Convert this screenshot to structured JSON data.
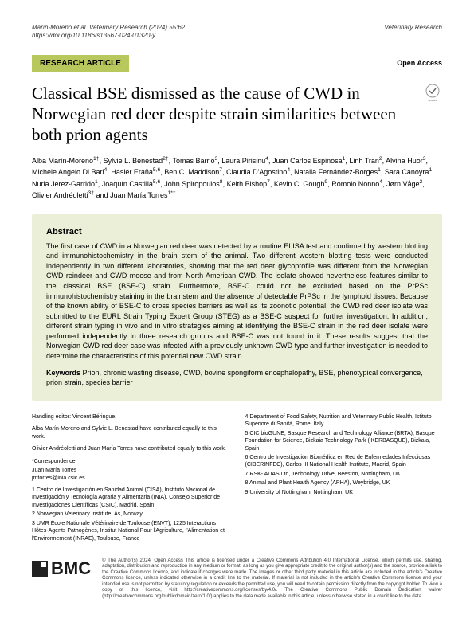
{
  "header": {
    "citation": "Marín-Moreno et al. Veterinary Research    (2024) 55:62",
    "doi": "https://doi.org/10.1186/s13567-024-01320-y",
    "journal": "Veterinary Research"
  },
  "badges": {
    "research": "RESEARCH ARTICLE",
    "open_access": "Open Access"
  },
  "title": "Classical BSE dismissed as the cause of CWD in Norwegian red deer despite strain similarities between both prion agents",
  "authors_html": "Alba Marín-Moreno<sup>1†</sup>, Sylvie L. Benestad<sup>2†</sup>, Tomas Barrio<sup>3</sup>, Laura Pirisinu<sup>4</sup>, Juan Carlos Espinosa<sup>1</sup>, Linh Tran<sup>2</sup>, Alvina Huor<sup>3</sup>, Michele Angelo Di Bari<sup>4</sup>, Hasier Eraña<sup>5,6</sup>, Ben C. Maddison<sup>7</sup>, Claudia D'Agostino<sup>4</sup>, Natalia Fernández-Borges<sup>1</sup>, Sara Canoyra<sup>1</sup>, Nuria Jerez-Garrido<sup>1</sup>, Joaquín Castilla<sup>5,6</sup>, John Spiropoulos<sup>8</sup>, Keith Bishop<sup>7</sup>, Kevin C. Gough<sup>9</sup>, Romolo Nonno<sup>4</sup>, Jørn Våge<sup>2</sup>, Olivier Andréoletti<sup>3†</sup> and Juan María Torres<sup>1*†</sup>",
  "abstract": {
    "heading": "Abstract",
    "text": "The first case of CWD in a Norwegian red deer was detected by a routine ELISA test and confirmed by western blotting and immunohistochemistry in the brain stem of the animal. Two different western blotting tests were conducted independently in two different laboratories, showing that the red deer glycoprofile was different from the Norwegian CWD reindeer and CWD moose and from North American CWD. The isolate showed nevertheless features similar to the classical BSE (BSE-C) strain. Furthermore, BSE-C could not be excluded based on the PrPSc immunohistochemistry staining in the brainstem and the absence of detectable PrPSc in the lymphoid tissues. Because of the known ability of BSE-C to cross species barriers as well as its zoonotic potential, the CWD red deer isolate was submitted to the EURL Strain Typing Expert Group (STEG) as a BSE-C suspect for further investigation. In addition, different strain typing in vivo and in vitro strategies aiming at identifying the BSE-C strain in the red deer isolate were performed independently in three research groups and BSE-C was not found in it. These results suggest that the Norwegian CWD red deer case was infected with a previously unknown CWD type and further investigation is needed to determine the characteristics of this potential new CWD strain.",
    "keywords_label": "Keywords",
    "keywords": "Prion, chronic wasting disease, CWD, bovine spongiform encephalopathy, BSE, phenotypical convergence, prion strain, species barrier"
  },
  "notes": {
    "editor": "Handling editor: Vincent Béringue.",
    "contrib1": "Alba Marín-Moreno and Sylvie L. Benestad have contributed equally to this work.",
    "contrib2": "Olivier Andréoletti and Juan María Torres have contributed equally to this work.",
    "corr_label": "*Correspondence:",
    "corr_name": "Juan María Torres",
    "corr_email": "jmtorres@inia.csic.es"
  },
  "affiliations": [
    "1 Centro de Investigación en Sanidad Animal (CISA), Instituto Nacional de Investigación y Tecnología Agraria y Alimentaria (INIA), Consejo Superior de Investigaciones Científicas (CSIC), Madrid, Spain",
    "2 Norwegian Veterinary Institute, Ås, Norway",
    "3 UMR École Nationale Vétérinaire de Toulouse (ENVT), 1225 Interactions Hôtes-Agents Pathogènes, Institut National Pour l'Agriculture, l'Alimentation et l'Environnement (INRAE), Toulouse, France",
    "4 Department of Food Safety, Nutrition and Veterinary Public Health, Istituto Superiore di Sanità, Rome, Italy",
    "5 CIC bioGUNE, Basque Research and Technology Alliance (BRTA), Basque Foundation for Science, Bizkaia Technology Park (IKERBASQUE), Bizkaia, Spain",
    "6 Centro de Investigación Biomédica en Red de Enfermedades Infecciosas (CIBERINFEC), Carlos III National Health Institute, Madrid, Spain",
    "7 RSK- ADAS Ltd, Technology Drive, Beeston, Nottingham, UK",
    "8 Animal and Plant Health Agency (APHA), Weybridge, UK",
    "9 University of Nottingham, Nottingham, UK"
  ],
  "footer": {
    "logo_text": "BMC",
    "license": "© The Author(s) 2024. Open Access This article is licensed under a Creative Commons Attribution 4.0 International License, which permits use, sharing, adaptation, distribution and reproduction in any medium or format, as long as you give appropriate credit to the original author(s) and the source, provide a link to the Creative Commons licence, and indicate if changes were made. The images or other third party material in this article are included in the article's Creative Commons licence, unless indicated otherwise in a credit line to the material. If material is not included in the article's Creative Commons licence and your intended use is not permitted by statutory regulation or exceeds the permitted use, you will need to obtain permission directly from the copyright holder. To view a copy of this licence, visit http://creativecommons.org/licenses/by/4.0/. The Creative Commons Public Domain Dedication waiver (http://creativecommons.org/publicdomain/zero/1.0/) applies to the data made available in this article, unless otherwise stated in a credit line to the data."
  },
  "colors": {
    "badge_bg": "#b8c85c",
    "abstract_bg": "#ecefd8"
  }
}
